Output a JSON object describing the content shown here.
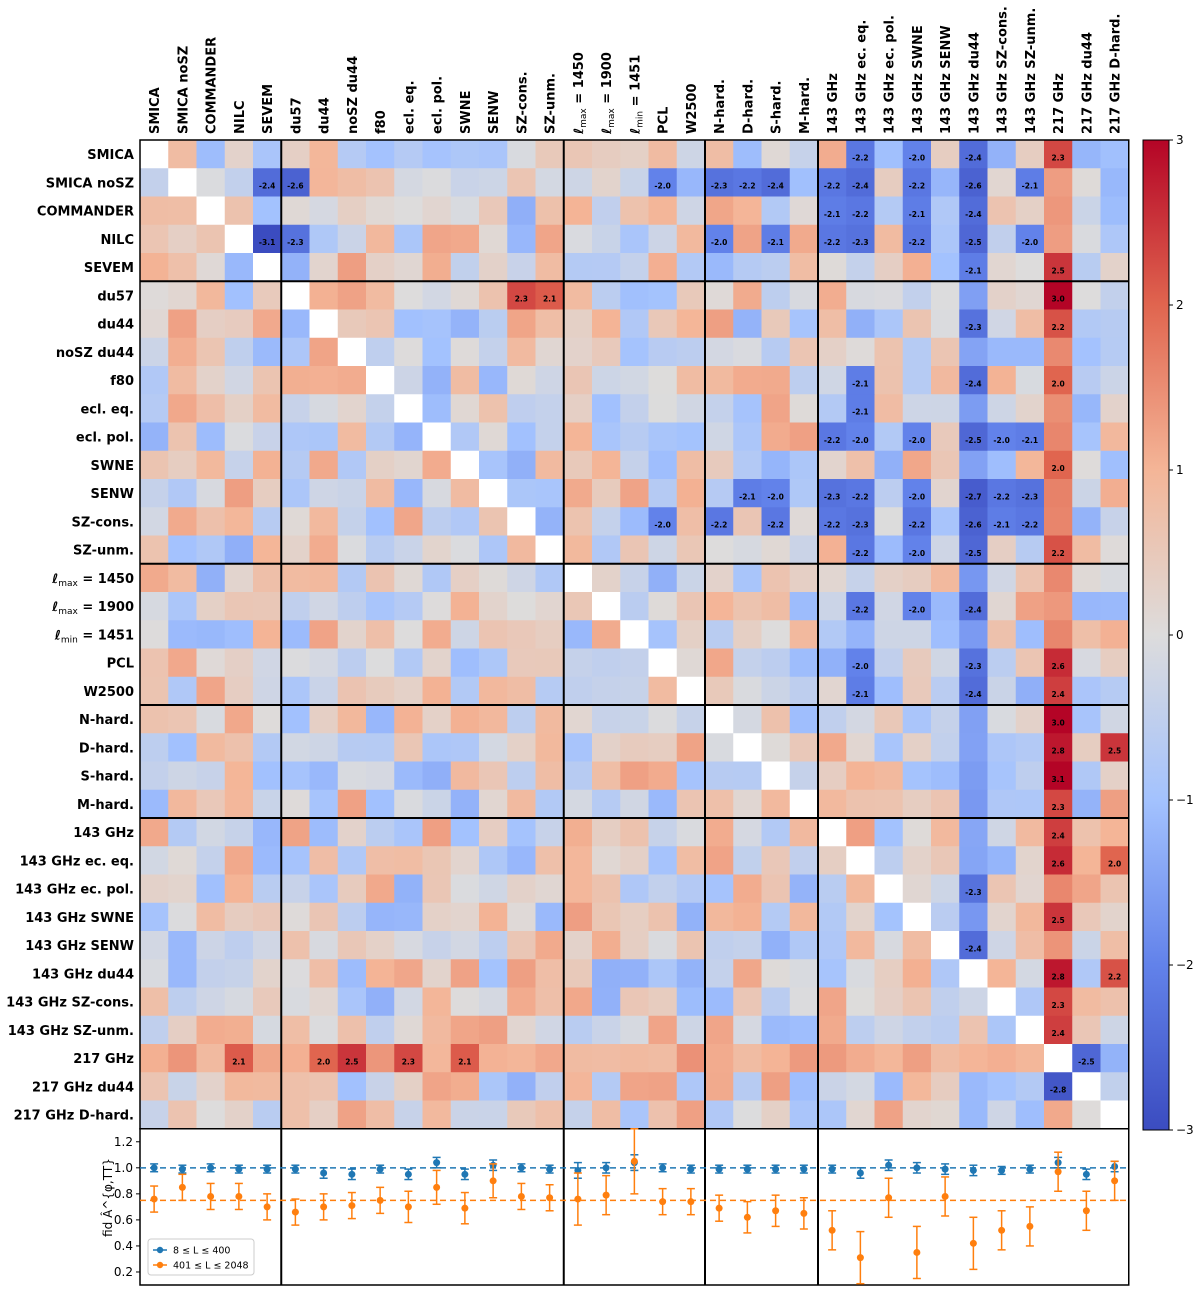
{
  "chart_data": [
    {
      "type": "heatmap",
      "title": "",
      "labels": [
        "SMICA",
        "SMICA noSZ",
        "COMMANDER",
        "NILC",
        "SEVEM",
        "du57",
        "du44",
        "noSZ du44",
        "f80",
        "ecl. eq.",
        "ecl. pol.",
        "SWNE",
        "SENW",
        "SZ-cons.",
        "SZ-unm.",
        "ℓmax = 1450",
        "ℓmax = 1900",
        "ℓmin = 1451",
        "PCL",
        "W2500",
        "N-hard.",
        "D-hard.",
        "S-hard.",
        "M-hard.",
        "143 GHz",
        "143 GHz ec. eq.",
        "143 GHz ec. pol.",
        "143 GHz  SWNE",
        "143 GHz  SENW",
        "143 GHz du44",
        "143 GHz SZ-cons.",
        "143 GHz SZ-unm.",
        "217 GHz",
        "217 GHz du44",
        "217 GHz D-hard."
      ],
      "column_labels": [
        "SMICA",
        "SMICA noSZ",
        "COMMANDER",
        "NILC",
        "SEVEM",
        "du57",
        "du44",
        "noSZ du44",
        "f80",
        "ecl. eq.",
        "ecl. pol.",
        "SWNE",
        "SENW",
        "SZ-cons.",
        "SZ-unm.",
        "ℓmax = 1450",
        "ℓmax = 1900",
        "ℓmin = 1451",
        "PCL",
        "W2500",
        "N-hard.",
        "D-hard.",
        "S-hard.",
        "M-hard.",
        "143 GHz",
        "143 GHz ec. eq.",
        "143 GHz ec. pol.",
        "143 GHz  SWNE",
        "143 GHz  SENW",
        "143 GHz du44",
        "143 GHz SZ-cons.",
        "143 GHz SZ-unm.",
        "217 GHz",
        "217 GHz du44",
        "217 GHz D-hard."
      ],
      "group_boundaries": [
        5,
        15,
        20,
        24
      ],
      "upper_triangle_note": "upper triangle: 8 ≤ L ≤ 400, lower triangle: 401 ≤ L ≤ 2048",
      "colorbar": {
        "range": [
          -3,
          3
        ],
        "ticks": [
          "3",
          "2",
          "1",
          "0",
          "−1",
          "−2",
          "−3"
        ],
        "colormap": "coolwarm"
      },
      "annotations": [
        [
          0,
          25,
          "-2.2"
        ],
        [
          0,
          27,
          "-2.0"
        ],
        [
          0,
          29,
          "-2.4"
        ],
        [
          0,
          32,
          "2.3"
        ],
        [
          1,
          4,
          "-2.4"
        ],
        [
          1,
          5,
          "-2.6"
        ],
        [
          1,
          18,
          "-2.0"
        ],
        [
          1,
          20,
          "-2.3"
        ],
        [
          1,
          21,
          "-2.2"
        ],
        [
          1,
          22,
          "-2.4"
        ],
        [
          1,
          24,
          "-2.2"
        ],
        [
          1,
          25,
          "-2.4"
        ],
        [
          1,
          27,
          "-2.2"
        ],
        [
          1,
          29,
          "-2.6"
        ],
        [
          1,
          31,
          "-2.1"
        ],
        [
          2,
          24,
          "-2.1"
        ],
        [
          2,
          25,
          "-2.2"
        ],
        [
          2,
          27,
          "-2.1"
        ],
        [
          2,
          29,
          "-2.4"
        ],
        [
          3,
          4,
          "-3.1"
        ],
        [
          3,
          5,
          "-2.3"
        ],
        [
          3,
          20,
          "-2.0"
        ],
        [
          3,
          22,
          "-2.1"
        ],
        [
          3,
          24,
          "-2.2"
        ],
        [
          3,
          25,
          "-2.3"
        ],
        [
          3,
          27,
          "-2.2"
        ],
        [
          3,
          29,
          "-2.5"
        ],
        [
          3,
          31,
          "-2.0"
        ],
        [
          4,
          29,
          "-2.1"
        ],
        [
          4,
          32,
          "2.5"
        ],
        [
          5,
          13,
          "2.3"
        ],
        [
          5,
          14,
          "2.1"
        ],
        [
          5,
          32,
          "3.0"
        ],
        [
          6,
          29,
          "-2.3"
        ],
        [
          6,
          32,
          "2.2"
        ],
        [
          8,
          25,
          "-2.1"
        ],
        [
          8,
          29,
          "-2.4"
        ],
        [
          8,
          32,
          "2.0"
        ],
        [
          9,
          25,
          "-2.1"
        ],
        [
          10,
          24,
          "-2.2"
        ],
        [
          10,
          25,
          "-2.0"
        ],
        [
          10,
          27,
          "-2.0"
        ],
        [
          10,
          29,
          "-2.5"
        ],
        [
          10,
          30,
          "-2.0"
        ],
        [
          10,
          31,
          "-2.1"
        ],
        [
          11,
          32,
          "2.0"
        ],
        [
          12,
          21,
          "-2.1"
        ],
        [
          12,
          22,
          "-2.0"
        ],
        [
          12,
          24,
          "-2.3"
        ],
        [
          12,
          25,
          "-2.2"
        ],
        [
          12,
          27,
          "-2.0"
        ],
        [
          12,
          29,
          "-2.7"
        ],
        [
          12,
          30,
          "-2.2"
        ],
        [
          12,
          31,
          "-2.3"
        ],
        [
          13,
          18,
          "-2.0"
        ],
        [
          13,
          20,
          "-2.2"
        ],
        [
          13,
          22,
          "-2.2"
        ],
        [
          13,
          24,
          "-2.2"
        ],
        [
          13,
          25,
          "-2.3"
        ],
        [
          13,
          27,
          "-2.2"
        ],
        [
          13,
          29,
          "-2.6"
        ],
        [
          13,
          30,
          "-2.1"
        ],
        [
          13,
          31,
          "-2.2"
        ],
        [
          14,
          25,
          "-2.2"
        ],
        [
          14,
          27,
          "-2.0"
        ],
        [
          14,
          29,
          "-2.5"
        ],
        [
          14,
          32,
          "2.2"
        ],
        [
          16,
          25,
          "-2.2"
        ],
        [
          16,
          27,
          "-2.0"
        ],
        [
          16,
          29,
          "-2.4"
        ],
        [
          18,
          25,
          "-2.0"
        ],
        [
          18,
          29,
          "-2.3"
        ],
        [
          18,
          32,
          "2.6"
        ],
        [
          19,
          25,
          "-2.1"
        ],
        [
          19,
          29,
          "-2.4"
        ],
        [
          19,
          32,
          "2.4"
        ],
        [
          20,
          32,
          "3.0"
        ],
        [
          21,
          32,
          "2.8"
        ],
        [
          21,
          34,
          "2.5"
        ],
        [
          22,
          32,
          "3.1"
        ],
        [
          23,
          32,
          "2.3"
        ],
        [
          24,
          32,
          "2.4"
        ],
        [
          25,
          32,
          "2.6"
        ],
        [
          25,
          34,
          "2.0"
        ],
        [
          26,
          29,
          "-2.3"
        ],
        [
          27,
          32,
          "2.5"
        ],
        [
          28,
          29,
          "-2.4"
        ],
        [
          29,
          32,
          "2.8"
        ],
        [
          29,
          34,
          "2.2"
        ],
        [
          30,
          32,
          "2.3"
        ],
        [
          31,
          32,
          "2.4"
        ],
        [
          32,
          3,
          "2.1"
        ],
        [
          32,
          6,
          "2.0"
        ],
        [
          32,
          7,
          "2.5"
        ],
        [
          32,
          9,
          "2.3"
        ],
        [
          32,
          11,
          "2.1"
        ],
        [
          32,
          33,
          "-2.5"
        ],
        [
          33,
          32,
          "-2.8"
        ]
      ]
    },
    {
      "type": "scatter",
      "ylabel": "fid Â^{φ,TT}",
      "ylim": [
        0.1,
        1.3
      ],
      "yticks": [
        "1.2",
        "1.0",
        "0.8",
        "0.6",
        "0.4",
        "0.2"
      ],
      "categories": [
        "SMICA",
        "SMICA noSZ",
        "COMMANDER",
        "NILC",
        "SEVEM",
        "du57",
        "du44",
        "noSZ du44",
        "f80",
        "ecl. eq.",
        "ecl. pol.",
        "SWNE",
        "SENW",
        "SZ-cons.",
        "SZ-unm.",
        "ℓmax = 1450",
        "ℓmax = 1900",
        "ℓmin = 1451",
        "PCL",
        "W2500",
        "N-hard.",
        "D-hard.",
        "S-hard.",
        "M-hard.",
        "143 GHz",
        "143 GHz ec. eq.",
        "143 GHz ec. pol.",
        "143 GHz  SWNE",
        "143 GHz  SENW",
        "143 GHz du44",
        "143 GHz SZ-cons.",
        "143 GHz SZ-unm.",
        "217 GHz",
        "217 GHz du44",
        "217 GHz D-hard."
      ],
      "reference_lines": [
        1.0,
        0.75
      ],
      "series": [
        {
          "name": "8 ≤ L ≤ 400",
          "color": "#1f77b4",
          "values": [
            1.0,
            0.99,
            1.0,
            0.99,
            0.99,
            0.99,
            0.96,
            0.95,
            0.99,
            0.95,
            1.04,
            0.95,
            1.02,
            1.0,
            0.99,
            0.98,
            1.0,
            1.04,
            1.0,
            0.99,
            0.99,
            0.99,
            0.99,
            0.99,
            0.99,
            0.96,
            1.02,
            1.0,
            0.99,
            0.98,
            0.98,
            0.99,
            1.04,
            0.95,
            1.01
          ],
          "errors": [
            0.03,
            0.03,
            0.03,
            0.03,
            0.03,
            0.03,
            0.04,
            0.04,
            0.03,
            0.04,
            0.04,
            0.04,
            0.04,
            0.03,
            0.03,
            0.06,
            0.04,
            0.06,
            0.03,
            0.03,
            0.03,
            0.03,
            0.03,
            0.03,
            0.03,
            0.04,
            0.04,
            0.04,
            0.04,
            0.04,
            0.03,
            0.03,
            0.04,
            0.04,
            0.04
          ]
        },
        {
          "name": "401 ≤ L ≤ 2048",
          "color": "#ff7f0e",
          "values": [
            0.76,
            0.85,
            0.78,
            0.78,
            0.7,
            0.66,
            0.7,
            0.71,
            0.75,
            0.7,
            0.85,
            0.69,
            0.9,
            0.78,
            0.77,
            0.76,
            0.79,
            1.05,
            0.74,
            0.74,
            0.69,
            0.62,
            0.67,
            0.65,
            0.52,
            0.31,
            0.77,
            0.35,
            0.78,
            0.42,
            0.52,
            0.55,
            0.97,
            0.67,
            0.9
          ],
          "errors": [
            0.1,
            0.1,
            0.1,
            0.1,
            0.1,
            0.1,
            0.1,
            0.1,
            0.1,
            0.12,
            0.13,
            0.12,
            0.13,
            0.1,
            0.1,
            0.2,
            0.15,
            0.25,
            0.1,
            0.1,
            0.1,
            0.12,
            0.12,
            0.12,
            0.15,
            0.2,
            0.15,
            0.2,
            0.15,
            0.2,
            0.15,
            0.15,
            0.15,
            0.15,
            0.15
          ]
        }
      ]
    }
  ]
}
